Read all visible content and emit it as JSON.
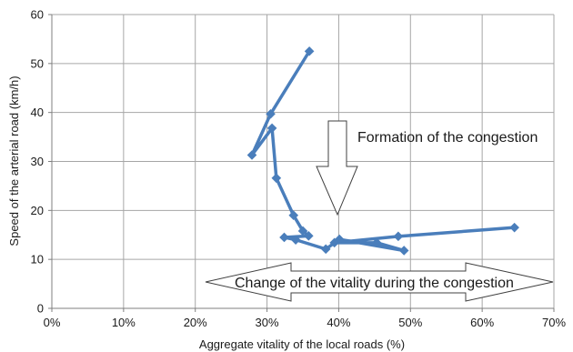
{
  "chart_data": {
    "type": "line",
    "xlabel": "Aggregate vitality of the local roads (%)",
    "ylabel": "Speed of the arterial road (km/h)",
    "xlim": [
      0,
      70
    ],
    "ylim": [
      0,
      60
    ],
    "x_tick_labels": [
      "0%",
      "10%",
      "20%",
      "30%",
      "40%",
      "50%",
      "60%",
      "70%"
    ],
    "y_tick_labels": [
      "0",
      "10",
      "20",
      "30",
      "40",
      "50",
      "60"
    ],
    "grid": true,
    "legend": "none",
    "series": [
      {
        "color": "#4a7ebb",
        "marker": "diamond",
        "points": [
          [
            35.9,
            52.5
          ],
          [
            30.5,
            39.7
          ],
          [
            27.9,
            31.3
          ],
          [
            30.7,
            36.8
          ],
          [
            31.3,
            26.6
          ],
          [
            33.7,
            19.0
          ],
          [
            35.0,
            15.8
          ],
          [
            35.8,
            14.8
          ],
          [
            32.4,
            14.5
          ],
          [
            34.0,
            14.0
          ],
          [
            38.2,
            12.1
          ],
          [
            40.1,
            14.1
          ],
          [
            49.1,
            11.8
          ],
          [
            45.3,
            13.4
          ],
          [
            39.4,
            13.4
          ],
          [
            48.3,
            14.7
          ],
          [
            64.5,
            16.5
          ]
        ]
      }
    ]
  },
  "annotations": {
    "formation_label": "Formation of the congestion",
    "change_label": "Change of the vitality during the congestion"
  }
}
